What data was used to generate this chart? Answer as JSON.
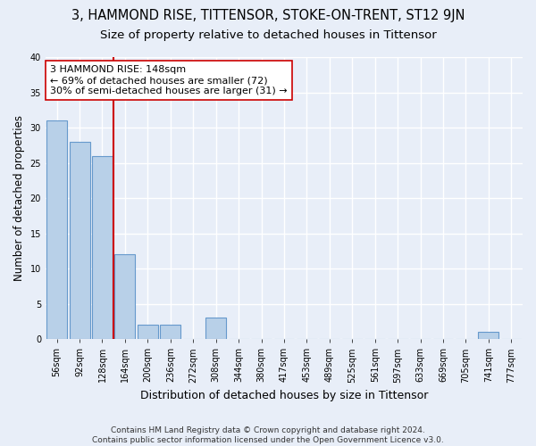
{
  "title": "3, HAMMOND RISE, TITTENSOR, STOKE-ON-TRENT, ST12 9JN",
  "subtitle": "Size of property relative to detached houses in Tittensor",
  "xlabel": "Distribution of detached houses by size in Tittensor",
  "ylabel": "Number of detached properties",
  "categories": [
    "56sqm",
    "92sqm",
    "128sqm",
    "164sqm",
    "200sqm",
    "236sqm",
    "272sqm",
    "308sqm",
    "344sqm",
    "380sqm",
    "417sqm",
    "453sqm",
    "489sqm",
    "525sqm",
    "561sqm",
    "597sqm",
    "633sqm",
    "669sqm",
    "705sqm",
    "741sqm",
    "777sqm"
  ],
  "values": [
    31,
    28,
    26,
    12,
    2,
    2,
    0,
    3,
    0,
    0,
    0,
    0,
    0,
    0,
    0,
    0,
    0,
    0,
    0,
    1,
    0
  ],
  "bar_color": "#b8d0e8",
  "bar_edge_color": "#6699cc",
  "reference_line_x": 2.5,
  "reference_line_color": "#cc0000",
  "annotation_line1": "3 HAMMOND RISE: 148sqm",
  "annotation_line2": "← 69% of detached houses are smaller (72)",
  "annotation_line3": "30% of semi-detached houses are larger (31) →",
  "annotation_box_color": "#ffffff",
  "annotation_box_edge_color": "#cc0000",
  "ylim": [
    0,
    40
  ],
  "yticks": [
    0,
    5,
    10,
    15,
    20,
    25,
    30,
    35,
    40
  ],
  "background_color": "#e8eef8",
  "plot_bg_color": "#e8eef8",
  "grid_color": "#ffffff",
  "footnote": "Contains HM Land Registry data © Crown copyright and database right 2024.\nContains public sector information licensed under the Open Government Licence v3.0.",
  "title_fontsize": 10.5,
  "subtitle_fontsize": 9.5,
  "xlabel_fontsize": 9,
  "ylabel_fontsize": 8.5,
  "annotation_fontsize": 8,
  "tick_fontsize": 7,
  "footnote_fontsize": 6.5
}
